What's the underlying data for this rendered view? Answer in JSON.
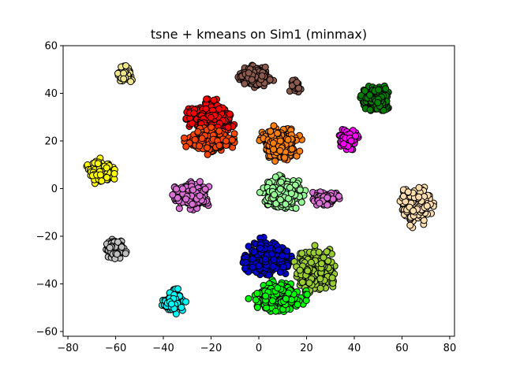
{
  "chart_data": {
    "type": "scatter",
    "title": "tsne + kmeans on Sim1 (minmax)",
    "xlabel": "",
    "ylabel": "",
    "xlim": [
      -82,
      82
    ],
    "ylim": [
      -62,
      60
    ],
    "x_ticks": [
      -80,
      -60,
      -40,
      -20,
      0,
      20,
      40,
      60,
      80
    ],
    "y_ticks": [
      -60,
      -40,
      -20,
      0,
      20,
      40,
      60
    ],
    "grid": false,
    "legend": "none",
    "marker_edge_color": "#000000",
    "clusters": [
      {
        "color": "#f0e68c",
        "center": [
          -56,
          48
        ],
        "spread": [
          4,
          4
        ],
        "n": 70
      },
      {
        "color": "#8b5a4c",
        "center": [
          -2,
          47
        ],
        "spread": [
          9,
          5
        ],
        "n": 200
      },
      {
        "color": "#8b5a4c",
        "center": [
          15,
          43
        ],
        "spread": [
          3,
          3
        ],
        "n": 35
      },
      {
        "color": "#008000",
        "center": [
          49,
          38
        ],
        "spread": [
          8,
          6
        ],
        "n": 220
      },
      {
        "color": "#ff0000",
        "center": [
          -20,
          30
        ],
        "spread": [
          11,
          8
        ],
        "n": 320
      },
      {
        "color": "#ff4500",
        "center": [
          -20,
          20
        ],
        "spread": [
          12,
          6
        ],
        "n": 260
      },
      {
        "color": "#ff7f0e",
        "center": [
          9,
          19
        ],
        "spread": [
          10,
          8
        ],
        "n": 260
      },
      {
        "color": "#ff00ff",
        "center": [
          38,
          21
        ],
        "spread": [
          5,
          5
        ],
        "n": 90
      },
      {
        "color": "#ffff00",
        "center": [
          -66,
          7
        ],
        "spread": [
          7,
          6
        ],
        "n": 170
      },
      {
        "color": "#da70d6",
        "center": [
          -28,
          -3
        ],
        "spread": [
          9,
          7
        ],
        "n": 230
      },
      {
        "color": "#98fb98",
        "center": [
          10,
          -2
        ],
        "spread": [
          10,
          8
        ],
        "n": 280
      },
      {
        "color": "#da70d6",
        "center": [
          28,
          -4
        ],
        "spread": [
          8,
          4
        ],
        "n": 80
      },
      {
        "color": "#ffdead",
        "center": [
          66,
          -7
        ],
        "spread": [
          8,
          10
        ],
        "n": 220
      },
      {
        "color": "#c0c0c0",
        "center": [
          -60,
          -25
        ],
        "spread": [
          5,
          5
        ],
        "n": 110
      },
      {
        "color": "#0000cd",
        "center": [
          4,
          -29
        ],
        "spread": [
          12,
          9
        ],
        "n": 360
      },
      {
        "color": "#9acd32",
        "center": [
          24,
          -34
        ],
        "spread": [
          10,
          11
        ],
        "n": 300
      },
      {
        "color": "#00ff00",
        "center": [
          8,
          -45
        ],
        "spread": [
          13,
          7
        ],
        "n": 330
      },
      {
        "color": "#00ffff",
        "center": [
          -36,
          -47
        ],
        "spread": [
          6,
          6
        ],
        "n": 120
      }
    ]
  }
}
